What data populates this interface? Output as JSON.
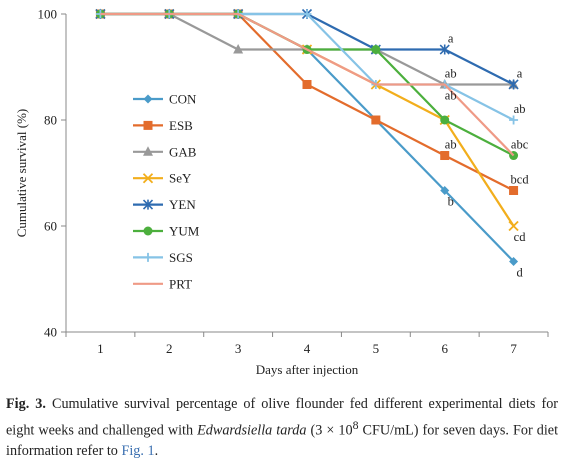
{
  "chart_data": {
    "type": "line",
    "title": "",
    "xlabel": "Days after injection",
    "ylabel": "Cumulative survival (%)",
    "x": [
      1,
      2,
      3,
      4,
      5,
      6,
      7
    ],
    "xlim": [
      0.5,
      7.5
    ],
    "ylim": [
      40,
      100
    ],
    "yticks": [
      40,
      60,
      80,
      100
    ],
    "grid": false,
    "legend_position": "left-center",
    "series": [
      {
        "name": "CON",
        "color": "#4a9bc9",
        "marker": "diamond",
        "values": [
          100,
          100,
          100,
          93.3,
          80,
          66.7,
          53.3
        ]
      },
      {
        "name": "ESB",
        "color": "#e36c2c",
        "marker": "square",
        "values": [
          100,
          100,
          100,
          86.7,
          80,
          73.3,
          66.7
        ]
      },
      {
        "name": "GAB",
        "color": "#999999",
        "marker": "triangle",
        "values": [
          100,
          100,
          93.3,
          93.3,
          93.3,
          86.7,
          86.7
        ]
      },
      {
        "name": "SeY",
        "color": "#f2ae1c",
        "marker": "x",
        "values": [
          100,
          100,
          100,
          93.3,
          86.7,
          80,
          60
        ]
      },
      {
        "name": "YEN",
        "color": "#2e6bb0",
        "marker": "star",
        "values": [
          100,
          100,
          100,
          100,
          93.3,
          93.3,
          86.7
        ]
      },
      {
        "name": "YUM",
        "color": "#4caf3d",
        "marker": "circle",
        "values": [
          100,
          100,
          100,
          93.3,
          93.3,
          80,
          73.3
        ]
      },
      {
        "name": "SGS",
        "color": "#86c3e6",
        "marker": "plus",
        "values": [
          100,
          100,
          100,
          100,
          86.7,
          86.7,
          80
        ]
      },
      {
        "name": "PRT",
        "color": "#ef9a86",
        "marker": "none",
        "values": [
          100,
          100,
          100,
          93.3,
          86.7,
          86.7,
          73.3
        ]
      }
    ],
    "annotations": [
      {
        "text": "a",
        "x": 6,
        "y": 93.3,
        "pos": "above"
      },
      {
        "text": "ab",
        "x": 6,
        "y": 86.7,
        "pos": "above"
      },
      {
        "text": "ab",
        "x": 6,
        "y": 86.7,
        "pos": "below"
      },
      {
        "text": "ab",
        "x": 6,
        "y": 73.3,
        "pos": "above"
      },
      {
        "text": "b",
        "x": 6,
        "y": 66.7,
        "pos": "below"
      },
      {
        "text": "a",
        "x": 7,
        "y": 86.7,
        "pos": "above"
      },
      {
        "text": "ab",
        "x": 7,
        "y": 80,
        "pos": "above"
      },
      {
        "text": "abc",
        "x": 7,
        "y": 73.3,
        "pos": "above"
      },
      {
        "text": "bcd",
        "x": 7,
        "y": 66.7,
        "pos": "above"
      },
      {
        "text": "cd",
        "x": 7,
        "y": 60,
        "pos": "below"
      },
      {
        "text": "d",
        "x": 7,
        "y": 53.3,
        "pos": "below"
      }
    ]
  },
  "caption": {
    "label": "Fig. 3.",
    "text_1": "Cumulative survival percentage of olive flounder fed different experimental diets for eight weeks and challenged with",
    "species": "Edwardsiella tarda",
    "text_2": "(3 × 10",
    "exponent": "8",
    "text_3": "CFU/mL) for seven days. For diet information refer to",
    "link": "Fig. 1",
    "end": "."
  }
}
